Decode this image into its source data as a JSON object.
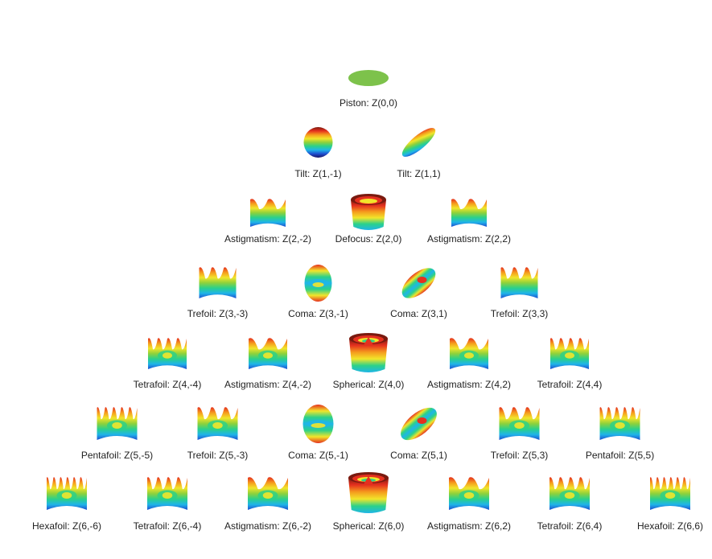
{
  "diagram": {
    "rows": [
      {
        "items": [
          {
            "label": "Piston: Z(0,0)",
            "n": 0,
            "m": 0
          }
        ]
      },
      {
        "items": [
          {
            "label": "Tilt: Z(1,-1)",
            "n": 1,
            "m": -1
          },
          {
            "label": "Tilt: Z(1,1)",
            "n": 1,
            "m": 1
          }
        ]
      },
      {
        "items": [
          {
            "label": "Astigmatism: Z(2,-2)",
            "n": 2,
            "m": -2
          },
          {
            "label": "Defocus: Z(2,0)",
            "n": 2,
            "m": 0
          },
          {
            "label": "Astigmatism: Z(2,2)",
            "n": 2,
            "m": 2
          }
        ]
      },
      {
        "items": [
          {
            "label": "Trefoil: Z(3,-3)",
            "n": 3,
            "m": -3
          },
          {
            "label": "Coma: Z(3,-1)",
            "n": 3,
            "m": -1
          },
          {
            "label": "Coma: Z(3,1)",
            "n": 3,
            "m": 1
          },
          {
            "label": "Trefoil: Z(3,3)",
            "n": 3,
            "m": 3
          }
        ]
      },
      {
        "items": [
          {
            "label": "Tetrafoil: Z(4,-4)",
            "n": 4,
            "m": -4
          },
          {
            "label": "Astigmatism: Z(4,-2)",
            "n": 4,
            "m": -2
          },
          {
            "label": "Spherical: Z(4,0)",
            "n": 4,
            "m": 0
          },
          {
            "label": "Astigmatism: Z(4,2)",
            "n": 4,
            "m": 2
          },
          {
            "label": "Tetrafoil: Z(4,4)",
            "n": 4,
            "m": 4
          }
        ]
      },
      {
        "items": [
          {
            "label": "Pentafoil: Z(5,-5)",
            "n": 5,
            "m": -5
          },
          {
            "label": "Trefoil: Z(5,-3)",
            "n": 5,
            "m": -3
          },
          {
            "label": "Coma: Z(5,-1)",
            "n": 5,
            "m": -1
          },
          {
            "label": "Coma: Z(5,1)",
            "n": 5,
            "m": 1
          },
          {
            "label": "Trefoil: Z(5,3)",
            "n": 5,
            "m": 3
          },
          {
            "label": "Pentafoil: Z(5,5)",
            "n": 5,
            "m": 5
          }
        ]
      },
      {
        "items": [
          {
            "label": "Hexafoil: Z(6,-6)",
            "n": 6,
            "m": -6
          },
          {
            "label": "Tetrafoil: Z(6,-4)",
            "n": 6,
            "m": -4
          },
          {
            "label": "Astigmatism: Z(6,-2)",
            "n": 6,
            "m": -2
          },
          {
            "label": "Spherical: Z(6,0)",
            "n": 6,
            "m": 0
          },
          {
            "label": "Astigmatism: Z(6,2)",
            "n": 6,
            "m": 2
          },
          {
            "label": "Tetrafoil: Z(6,4)",
            "n": 6,
            "m": 4
          },
          {
            "label": "Hexafoil: Z(6,6)",
            "n": 6,
            "m": 6
          }
        ]
      }
    ],
    "colors": {
      "piston": "#7dc24b",
      "colormap": [
        "#1b1464",
        "#1f4fd1",
        "#1fb5e8",
        "#2bd18a",
        "#8fd13b",
        "#f2e52a",
        "#f59a1d",
        "#e5301f",
        "#7a1a0f"
      ]
    }
  }
}
